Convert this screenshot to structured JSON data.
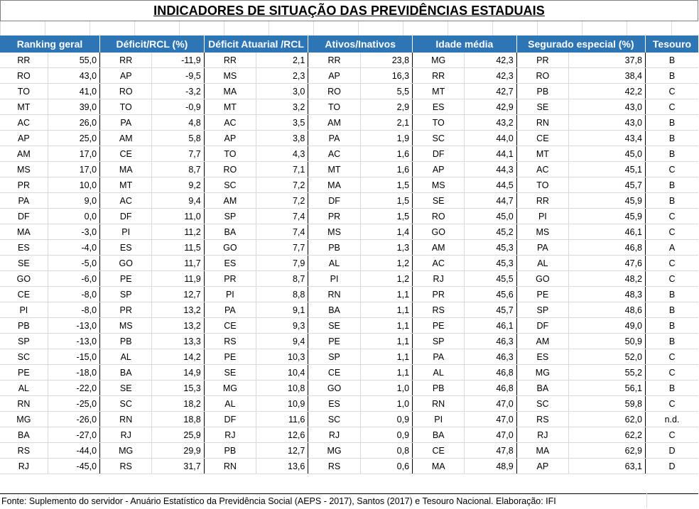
{
  "title": "INDICADORES DE SITUAÇÃO DAS PREVIDÊNCIAS ESTADUAIS",
  "headers": [
    "Ranking geral",
    "Déficit/RCL (%)",
    "Déficit Atuarial /RCL",
    "Ativos/Inativos",
    "Idade média",
    "Segurado especial (%)",
    "Tesouro"
  ],
  "rows": [
    [
      "RR",
      "55,0",
      "RR",
      "-11,9",
      "RR",
      "2,1",
      "RR",
      "23,8",
      "MG",
      "42,3",
      "PR",
      "37,8",
      "B"
    ],
    [
      "RO",
      "43,0",
      "AP",
      "-9,5",
      "MS",
      "2,3",
      "AP",
      "16,3",
      "RR",
      "42,3",
      "RO",
      "38,4",
      "B"
    ],
    [
      "TO",
      "41,0",
      "RO",
      "-3,2",
      "MA",
      "3,0",
      "RO",
      "5,5",
      "MT",
      "42,7",
      "PB",
      "42,2",
      "C"
    ],
    [
      "MT",
      "39,0",
      "TO",
      "-0,9",
      "MT",
      "3,2",
      "TO",
      "2,9",
      "ES",
      "42,9",
      "SE",
      "43,0",
      "C"
    ],
    [
      "AC",
      "26,0",
      "PA",
      "4,8",
      "AC",
      "3,5",
      "AM",
      "2,1",
      "TO",
      "43,2",
      "RN",
      "43,0",
      "B"
    ],
    [
      "AP",
      "25,0",
      "AM",
      "5,8",
      "AP",
      "3,8",
      "PA",
      "1,9",
      "SC",
      "44,0",
      "CE",
      "43,4",
      "B"
    ],
    [
      "AM",
      "17,0",
      "CE",
      "7,7",
      "TO",
      "4,3",
      "AC",
      "1,6",
      "DF",
      "44,1",
      "MT",
      "45,0",
      "B"
    ],
    [
      "MS",
      "17,0",
      "MA",
      "8,7",
      "RO",
      "7,1",
      "MT",
      "1,6",
      "AP",
      "44,3",
      "AC",
      "45,1",
      "C"
    ],
    [
      "PR",
      "10,0",
      "MT",
      "9,2",
      "SC",
      "7,2",
      "MA",
      "1,5",
      "MS",
      "44,5",
      "TO",
      "45,7",
      "B"
    ],
    [
      "PA",
      "9,0",
      "AC",
      "9,4",
      "AM",
      "7,2",
      "DF",
      "1,5",
      "SE",
      "44,7",
      "RR",
      "45,9",
      "B"
    ],
    [
      "DF",
      "0,0",
      "DF",
      "11,0",
      "SP",
      "7,4",
      "PR",
      "1,5",
      "RO",
      "45,0",
      "PI",
      "45,9",
      "C"
    ],
    [
      "MA",
      "-3,0",
      "PI",
      "11,2",
      "BA",
      "7,4",
      "MS",
      "1,4",
      "GO",
      "45,2",
      "MS",
      "46,1",
      "C"
    ],
    [
      "ES",
      "-4,0",
      "ES",
      "11,5",
      "GO",
      "7,7",
      "PB",
      "1,3",
      "AM",
      "45,3",
      "PA",
      "46,8",
      "A"
    ],
    [
      "SE",
      "-5,0",
      "GO",
      "11,7",
      "ES",
      "7,9",
      "AL",
      "1,2",
      "AC",
      "45,3",
      "AL",
      "47,6",
      "C"
    ],
    [
      "GO",
      "-6,0",
      "PE",
      "11,9",
      "PR",
      "8,7",
      "PI",
      "1,2",
      "RJ",
      "45,5",
      "GO",
      "48,2",
      "C"
    ],
    [
      "CE",
      "-8,0",
      "SP",
      "12,7",
      "PI",
      "8,8",
      "RN",
      "1,1",
      "PR",
      "45,6",
      "PE",
      "48,3",
      "B"
    ],
    [
      "PI",
      "-8,0",
      "PR",
      "13,2",
      "PA",
      "9,1",
      "BA",
      "1,1",
      "RS",
      "45,7",
      "SP",
      "48,6",
      "B"
    ],
    [
      "PB",
      "-13,0",
      "MS",
      "13,2",
      "CE",
      "9,3",
      "SE",
      "1,1",
      "PE",
      "46,1",
      "DF",
      "49,0",
      "B"
    ],
    [
      "SP",
      "-13,0",
      "PB",
      "13,3",
      "RS",
      "9,4",
      "PE",
      "1,1",
      "SP",
      "46,3",
      "AM",
      "50,9",
      "B"
    ],
    [
      "SC",
      "-15,0",
      "AL",
      "14,2",
      "PE",
      "10,3",
      "SP",
      "1,1",
      "PA",
      "46,3",
      "ES",
      "52,0",
      "C"
    ],
    [
      "PE",
      "-18,0",
      "BA",
      "14,9",
      "SE",
      "10,4",
      "CE",
      "1,1",
      "AL",
      "46,8",
      "MG",
      "55,2",
      "C"
    ],
    [
      "AL",
      "-22,0",
      "SE",
      "15,3",
      "MG",
      "10,8",
      "GO",
      "1,0",
      "PB",
      "46,8",
      "BA",
      "56,1",
      "B"
    ],
    [
      "RN",
      "-25,0",
      "SC",
      "18,2",
      "AL",
      "10,9",
      "ES",
      "1,0",
      "RN",
      "47,0",
      "SC",
      "59,8",
      "C"
    ],
    [
      "MG",
      "-26,0",
      "RN",
      "18,8",
      "DF",
      "11,6",
      "SC",
      "0,9",
      "PI",
      "47,0",
      "RS",
      "62,0",
      "n.d."
    ],
    [
      "BA",
      "-27,0",
      "RJ",
      "25,9",
      "RJ",
      "12,6",
      "RJ",
      "0,9",
      "BA",
      "47,0",
      "RJ",
      "62,2",
      "C"
    ],
    [
      "RS",
      "-44,0",
      "MG",
      "29,9",
      "PB",
      "12,7",
      "MG",
      "0,8",
      "CE",
      "47,8",
      "MA",
      "62,9",
      "D"
    ],
    [
      "RJ",
      "-45,0",
      "RS",
      "31,7",
      "RN",
      "13,6",
      "RS",
      "0,6",
      "MA",
      "48,9",
      "AP",
      "63,1",
      "D"
    ]
  ],
  "footer": "Fonte: Suplemento do servidor - Anuário Estatístico da Previdência Social (AEPS - 2017), Santos (2017) e Tesouro Nacional. Elaboração: IFI",
  "colors": {
    "header_bg": "#2e75b6",
    "header_text": "#ffffff",
    "grid": "#d9d9d9"
  }
}
